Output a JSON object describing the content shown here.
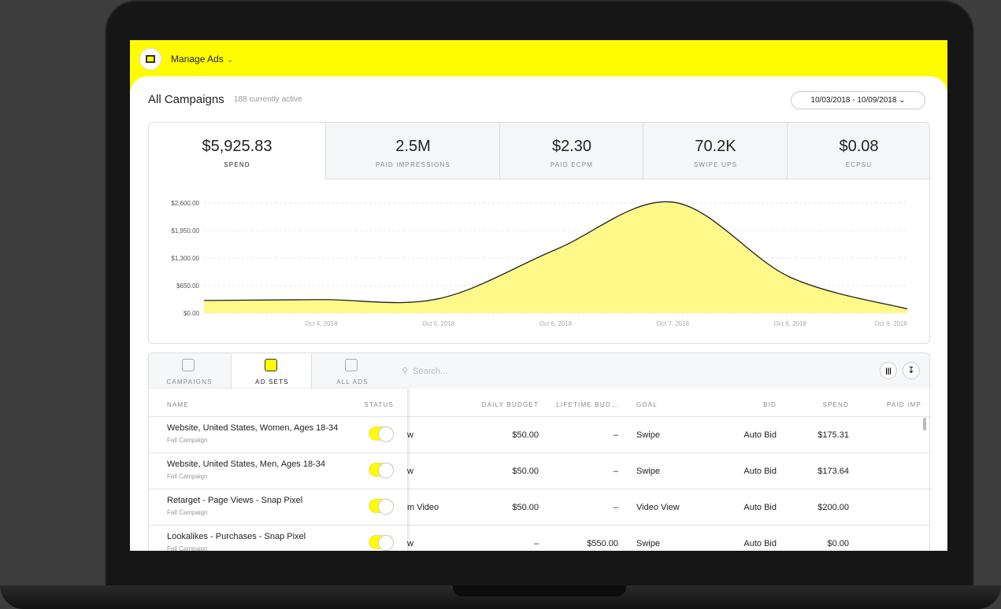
{
  "header": {
    "title": "Manage Ads"
  },
  "campaigns": {
    "title": "All Campaigns",
    "subtitle": "188 currently active",
    "date_range": "10/03/2018 - 10/09/2018"
  },
  "metrics": [
    {
      "value": "$5,925.83",
      "label": "SPEND"
    },
    {
      "value": "2.5M",
      "label": "PAID IMPRESSIONS"
    },
    {
      "value": "$2.30",
      "label": "PAID ECPM"
    },
    {
      "value": "70.2K",
      "label": "SWIPE UPS"
    },
    {
      "value": "$0.08",
      "label": "ECPSU"
    }
  ],
  "chart_data": {
    "type": "area",
    "x": [
      "2018-10-03",
      "2018-10-04",
      "2018-10-05",
      "2018-10-06",
      "2018-10-07",
      "2018-10-08",
      "2018-10-09"
    ],
    "values": [
      300,
      320,
      340,
      1500,
      2620,
      850,
      100
    ],
    "color": "#fff98a",
    "line_color": "#222222",
    "xlim": [
      "2018-10-03",
      "2018-10-09"
    ],
    "xticks": [
      {
        "value": "2018-10-04",
        "label": "Oct 4, 2018"
      },
      {
        "value": "2018-10-05",
        "label": "Oct 5, 2018"
      },
      {
        "value": "2018-10-06",
        "label": "Oct 6, 2018"
      },
      {
        "value": "2018-10-07",
        "label": "Oct 7, 2018"
      },
      {
        "value": "2018-10-08",
        "label": "Oct 8, 2018"
      },
      {
        "value": "2018-10-09",
        "label": "Oct 9, 2018"
      }
    ],
    "ylim": [
      0,
      2600
    ],
    "yticks": [
      {
        "value": 0,
        "label": "$0.00"
      },
      {
        "value": 650,
        "label": "$650.00"
      },
      {
        "value": 1300,
        "label": "$1,300.00"
      },
      {
        "value": 1950,
        "label": "$1,950.00"
      },
      {
        "value": 2600,
        "label": "$2,600.00"
      }
    ],
    "grid": true
  },
  "tabs": [
    "CAMPAIGNS",
    "AD SETS",
    "ALL ADS"
  ],
  "search_placeholder": "Search...",
  "table": {
    "columns": [
      "NAME",
      "STATUS",
      "DAILY BUDGET",
      "LIFETIME BUD…",
      "GOAL",
      "BID",
      "SPEND",
      "PAID IMP"
    ],
    "rows": [
      {
        "name": "Website, United States, Women, Ages 18-34",
        "campaign": "Fall Campaign",
        "delivery": "w",
        "daily": "$50.00",
        "lifetime": "–",
        "goal": "Swipe",
        "bid": "Auto Bid",
        "spend": "$175.31"
      },
      {
        "name": "Website, United States, Men, Ages 18-34",
        "campaign": "Fall Campaign",
        "delivery": "w",
        "daily": "$50.00",
        "lifetime": "–",
        "goal": "Swipe",
        "bid": "Auto Bid",
        "spend": "$173.64"
      },
      {
        "name": "Retarget - Page Views - Snap Pixel",
        "campaign": "Fall Campaign",
        "delivery": "m Video",
        "daily": "$50.00",
        "lifetime": "–",
        "goal": "Video View",
        "bid": "Auto Bid",
        "spend": "$200.00"
      },
      {
        "name": "Lookalikes - Purchases - Snap Pixel",
        "campaign": "Fall Campaign",
        "delivery": "w",
        "daily": "–",
        "lifetime": "$550.00",
        "goal": "Swipe",
        "bid": "Auto Bid",
        "spend": "$0.00"
      }
    ]
  }
}
